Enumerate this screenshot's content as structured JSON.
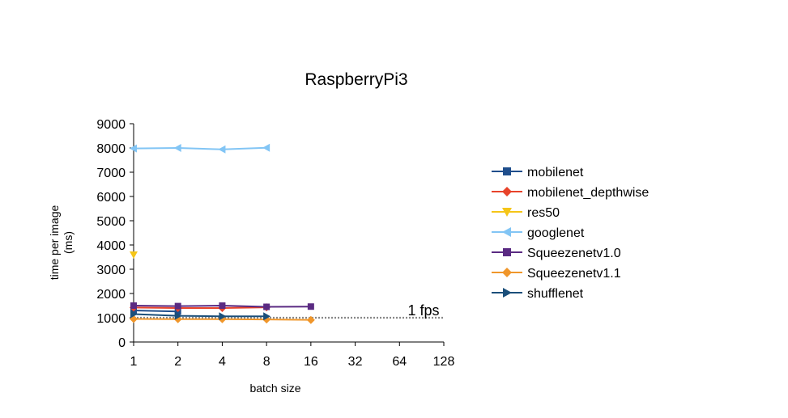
{
  "chart_data": {
    "type": "line",
    "title": "RaspberryPi3",
    "xlabel": "batch size",
    "ylabel": "time per image (ms)",
    "ylabel_lines": [
      "time per image",
      "(ms)"
    ],
    "categories": [
      "1",
      "2",
      "4",
      "8",
      "16",
      "32",
      "64",
      "128"
    ],
    "x_scale": "log2",
    "ylim": [
      0,
      9000
    ],
    "yticks": [
      0,
      1000,
      2000,
      3000,
      4000,
      5000,
      6000,
      7000,
      8000,
      9000
    ],
    "grid": false,
    "legend_position": "right",
    "series": [
      {
        "name": "mobilenet",
        "color": "#1f4e8c",
        "marker": "square",
        "values": [
          1300,
          1260,
          null,
          null,
          null,
          null,
          null,
          null
        ]
      },
      {
        "name": "mobilenet_depthwise",
        "color": "#e8432a",
        "marker": "diamond",
        "values": [
          1420,
          1400,
          1400,
          1430,
          null,
          null,
          null,
          null
        ]
      },
      {
        "name": "res50",
        "color": "#f5c518",
        "marker": "triangle-down",
        "values": [
          3600,
          null,
          null,
          null,
          null,
          null,
          null,
          null
        ]
      },
      {
        "name": "googlenet",
        "color": "#82c5f5",
        "marker": "triangle-left",
        "values": [
          7980,
          8000,
          7940,
          8010,
          null,
          null,
          null,
          null
        ]
      },
      {
        "name": "Squeezenetv1.0",
        "color": "#5a2a82",
        "marker": "square",
        "values": [
          1500,
          1480,
          1500,
          1450,
          1460,
          null,
          null,
          null
        ]
      },
      {
        "name": "Squeezenetv1.1",
        "color": "#f0962a",
        "marker": "diamond",
        "values": [
          950,
          940,
          940,
          930,
          910,
          null,
          null,
          null
        ]
      },
      {
        "name": "shufflenet",
        "color": "#1b4f7a",
        "marker": "triangle-right",
        "values": [
          1150,
          1080,
          1060,
          1060,
          null,
          null,
          null,
          null
        ]
      }
    ],
    "reference_line": {
      "label": "1 fps",
      "value": 1000,
      "color": "#888888",
      "style": "dotted"
    }
  }
}
